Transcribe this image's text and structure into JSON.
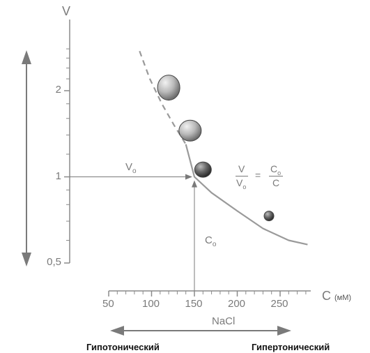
{
  "chart_data": {
    "type": "line",
    "x_scale": "linear",
    "y_scale": "log",
    "xlabel": "C",
    "x_unit": "(мМ)",
    "ylabel": "V",
    "x_ticks": [
      50,
      100,
      150,
      200,
      250
    ],
    "y_ticks": [
      {
        "value": 0.5,
        "label": "0,5"
      },
      {
        "value": 1,
        "label": "1"
      },
      {
        "value": 2,
        "label": "2"
      }
    ],
    "xlim": [
      50,
      280
    ],
    "ylim": [
      0.5,
      2.9
    ],
    "series": [
      {
        "style": "dashed",
        "x": [
          86,
          98,
          112,
          126,
          140
        ],
        "y": [
          2.75,
          2.2,
          1.8,
          1.52,
          1.3
        ]
      },
      {
        "style": "solid",
        "x": [
          140,
          150,
          170,
          200,
          230,
          260,
          282
        ],
        "y": [
          1.3,
          1.0,
          0.88,
          0.76,
          0.66,
          0.6,
          0.58
        ]
      }
    ],
    "cells": [
      {
        "x": 120,
        "y": 2.05,
        "size": "large"
      },
      {
        "x": 145,
        "y": 1.45,
        "size": "medium"
      },
      {
        "x": 160,
        "y": 1.06,
        "size": "small"
      },
      {
        "x": 237,
        "y": 0.73,
        "size": "tiny"
      }
    ],
    "reference": {
      "x": 150,
      "y": 1,
      "x_label": "C",
      "x_sub": "o",
      "y_label": "V",
      "y_sub": "o"
    },
    "formula": {
      "lhs_num": "V",
      "lhs_den": "V",
      "lhs_den_sub": "o",
      "eq": "=",
      "rhs_num": "C",
      "rhs_num_sub": "o",
      "rhs_den": "C"
    },
    "bottom_axis_label": "NaCl",
    "left_label": "Гипотонический",
    "right_label": "Гипертонический"
  }
}
